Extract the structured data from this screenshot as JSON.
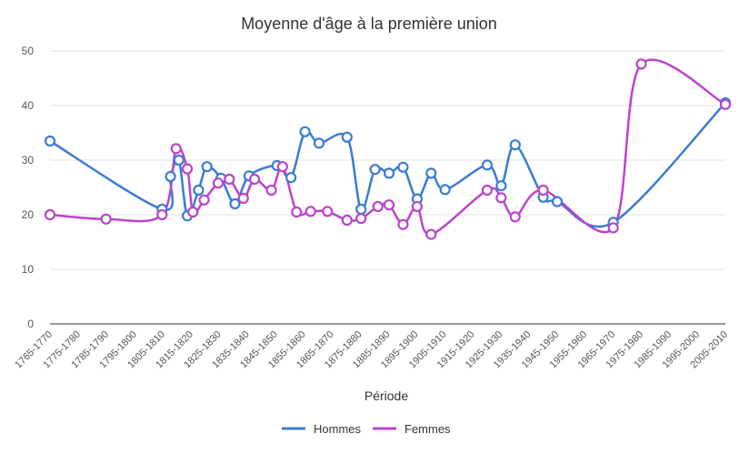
{
  "chart_data": {
    "type": "line",
    "title": "Moyenne d'âge à la première union",
    "xlabel": "Période",
    "ylabel": "",
    "ylim": [
      0,
      50
    ],
    "yticks": [
      "0",
      "10",
      "20",
      "30",
      "40",
      "50"
    ],
    "grid": true,
    "legend_position": "bottom",
    "categories": [
      "1765-1770",
      "1775-1780",
      "1785-1790",
      "1795-1800",
      "1805-1810",
      "1815-1820",
      "1825-1830",
      "1835-1840",
      "1845-1850",
      "1855-1860",
      "1865-1870",
      "1875-1880",
      "1885-1890",
      "1895-1900",
      "1905-1910",
      "1915-1920",
      "1925-1930",
      "1935-1940",
      "1945-1950",
      "1955-1960",
      "1965-1970",
      "1975-1980",
      "1985-1990",
      "1995-2000",
      "2005-2010"
    ],
    "series": [
      {
        "name": "Hommes",
        "color": "#3a7bd5",
        "points": [
          [
            1767,
            33.5
          ],
          [
            1807,
            21
          ],
          [
            1810,
            27
          ],
          [
            1813,
            30
          ],
          [
            1816,
            19.8
          ],
          [
            1820,
            24.5
          ],
          [
            1823,
            28.8
          ],
          [
            1828,
            26.7
          ],
          [
            1833,
            22
          ],
          [
            1838,
            27.1
          ],
          [
            1848,
            29
          ],
          [
            1853,
            26.8
          ],
          [
            1858,
            35.2
          ],
          [
            1863,
            33.1
          ],
          [
            1873,
            34.2
          ],
          [
            1878,
            21
          ],
          [
            1883,
            28.3
          ],
          [
            1888,
            27.6
          ],
          [
            1893,
            28.7
          ],
          [
            1898,
            22.9
          ],
          [
            1903,
            27.6
          ],
          [
            1908,
            24.6
          ],
          [
            1923,
            29.1
          ],
          [
            1928,
            25.3
          ],
          [
            1933,
            32.8
          ],
          [
            1943,
            23.2
          ],
          [
            1948,
            22.4
          ],
          [
            1968,
            18.6
          ],
          [
            2008,
            40.5
          ]
        ]
      },
      {
        "name": "Femmes",
        "color": "#bb44cc",
        "points": [
          [
            1767,
            20
          ],
          [
            1787,
            19.2
          ],
          [
            1807,
            20
          ],
          [
            1812,
            32.1
          ],
          [
            1816,
            28.4
          ],
          [
            1818,
            20.5
          ],
          [
            1822,
            22.7
          ],
          [
            1827,
            25.8
          ],
          [
            1831,
            26.5
          ],
          [
            1836,
            23
          ],
          [
            1840,
            26.5
          ],
          [
            1846,
            24.5
          ],
          [
            1850,
            28.8
          ],
          [
            1855,
            20.5
          ],
          [
            1860,
            20.6
          ],
          [
            1866,
            20.6
          ],
          [
            1873,
            19
          ],
          [
            1878,
            19.3
          ],
          [
            1884,
            21.5
          ],
          [
            1888,
            21.8
          ],
          [
            1893,
            18.2
          ],
          [
            1898,
            21.5
          ],
          [
            1903,
            16.4
          ],
          [
            1923,
            24.5
          ],
          [
            1928,
            23.1
          ],
          [
            1933,
            19.6
          ],
          [
            1943,
            24.5
          ],
          [
            1968,
            17.6
          ],
          [
            1978,
            47.6
          ],
          [
            2008,
            40.2
          ]
        ]
      }
    ]
  }
}
